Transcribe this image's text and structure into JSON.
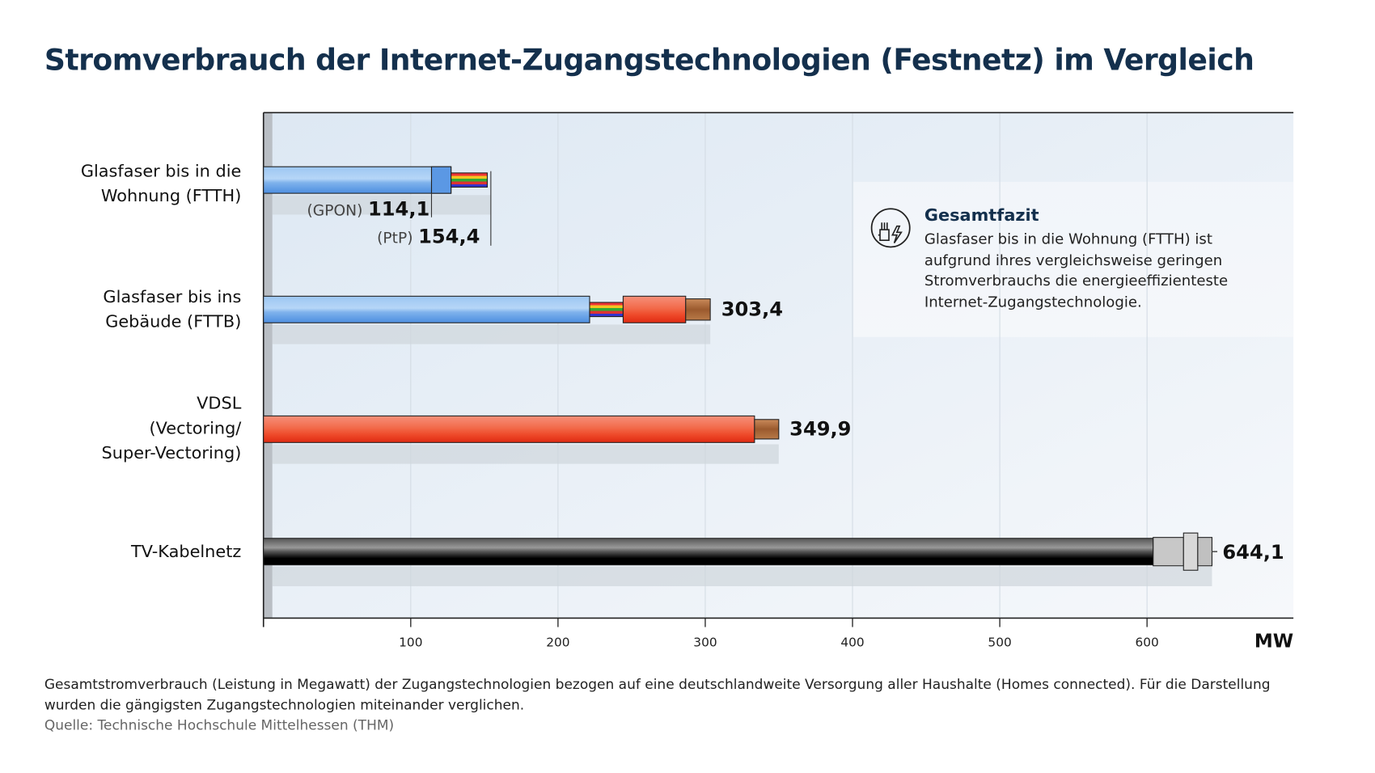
{
  "chart_data": {
    "type": "bar",
    "orientation": "horizontal",
    "title": "Stromverbrauch der Internet-Zugangstechnologien (Festnetz) im Vergleich",
    "xlabel": "MW",
    "xlim": [
      0,
      700
    ],
    "xticks": [
      "100",
      "200",
      "300",
      "400",
      "500",
      "600"
    ],
    "grid": true,
    "categories": [
      {
        "label_lines": [
          "Glasfaser bis in die",
          "Wohnung (FTTH)"
        ]
      },
      {
        "label_lines": [
          "Glasfaser bis ins",
          "Gebäude (FTTB)"
        ]
      },
      {
        "label_lines": [
          "VDSL",
          "(Vectoring/",
          "Super-Vectoring)"
        ]
      },
      {
        "label_lines": [
          "TV-Kabelnetz"
        ]
      }
    ],
    "values": [
      {
        "sub": [
          {
            "variant": "(GPON)",
            "value": 114.1,
            "label": "114,1"
          },
          {
            "variant": "(PtP)",
            "value": 154.4,
            "label": "154,4"
          }
        ]
      },
      {
        "value": 303.4,
        "label": "303,4"
      },
      {
        "value": 349.9,
        "label": "349,9"
      },
      {
        "value": 644.1,
        "label": "644,1"
      }
    ],
    "colors": {
      "fiber": "#6fa8e8",
      "copper_jacket": "#ee4a2a",
      "coax": "#333333",
      "grid_bg": "#e6eef6"
    }
  },
  "infobox": {
    "icon": "fiber-plug-lightning-icon",
    "title": "Gesamtfazit",
    "lines": [
      "Glasfaser bis in die Wohnung (FTTH) ist",
      "aufgrund ihres vergleichsweise geringen",
      "Stromverbrauchs die energieeffizienteste",
      "Internet-Zugangstechnologie."
    ]
  },
  "footnote": {
    "lines": [
      "Gesamtstromverbrauch (Leistung in Megawatt) der Zugangstechnologien bezogen auf eine deutschlandweite Versorgung aller Haushalte (Homes connected). Für die Darstellung",
      "wurden die gängigsten Zugangstechnologien miteinander verglichen."
    ],
    "source": "Quelle: Technische Hochschule Mittelhessen (THM)"
  }
}
